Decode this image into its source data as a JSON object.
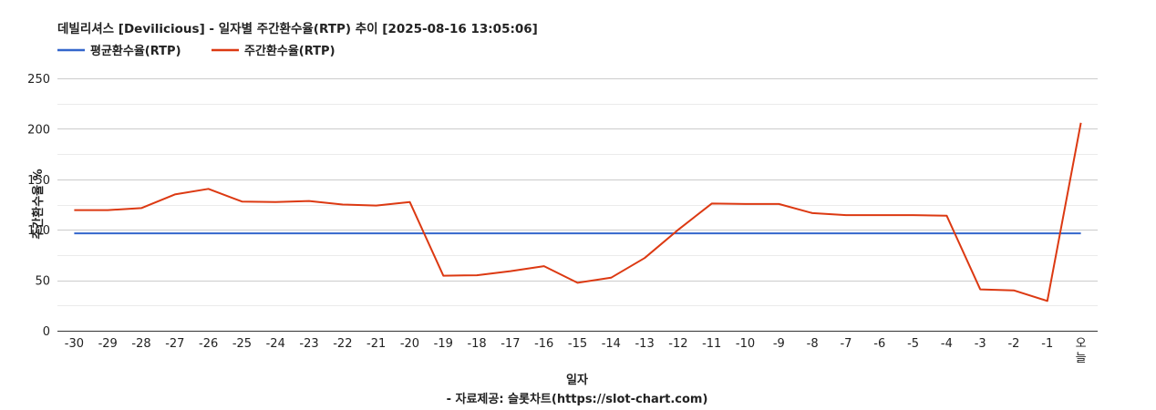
{
  "chart_data": {
    "type": "line",
    "title": "데빌리셔스 [Devilicious] - 일자별 주간환수율(RTP) 추이 [2025-08-16 13:05:06]",
    "xlabel": "일자",
    "ylabel": "주간환수율 %",
    "source_note": "- 자료제공: 슬롯차트(https://slot-chart.com)",
    "categories": [
      "-30",
      "-29",
      "-28",
      "-27",
      "-26",
      "-25",
      "-24",
      "-23",
      "-22",
      "-21",
      "-20",
      "-19",
      "-18",
      "-17",
      "-16",
      "-15",
      "-14",
      "-13",
      "-12",
      "-11",
      "-10",
      "-9",
      "-8",
      "-7",
      "-6",
      "-5",
      "-4",
      "-3",
      "-2",
      "-1",
      "오늘"
    ],
    "y_ticks": [
      0,
      50,
      100,
      150,
      200,
      250
    ],
    "ylim": [
      0,
      250
    ],
    "grid": true,
    "legend_position": "top-left",
    "series": [
      {
        "name": "평균환수율(RTP)",
        "color": "#3366cc",
        "values": [
          96.5,
          96.5,
          96.5,
          96.5,
          96.5,
          96.5,
          96.5,
          96.5,
          96.5,
          96.5,
          96.5,
          96.5,
          96.5,
          96.5,
          96.5,
          96.5,
          96.5,
          96.5,
          96.5,
          96.5,
          96.5,
          96.5,
          96.5,
          96.5,
          96.5,
          96.5,
          96.5,
          96.5,
          96.5,
          96.5,
          96.5
        ]
      },
      {
        "name": "주간환수율(RTP)",
        "color": "#dc3912",
        "values": [
          119.5,
          119.5,
          121.5,
          135,
          140.5,
          128,
          127.5,
          128.5,
          125,
          124,
          127.5,
          54.5,
          55,
          59,
          64,
          47.5,
          52.5,
          72,
          100,
          126,
          125.5,
          125.5,
          116.5,
          114.5,
          114.5,
          114.5,
          114,
          41,
          40,
          29.5,
          206
        ]
      }
    ]
  }
}
